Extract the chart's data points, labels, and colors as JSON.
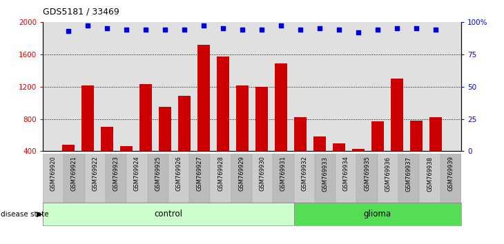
{
  "title": "GDS5181 / 33469",
  "samples": [
    "GSM769920",
    "GSM769921",
    "GSM769922",
    "GSM769923",
    "GSM769924",
    "GSM769925",
    "GSM769926",
    "GSM769927",
    "GSM769928",
    "GSM769929",
    "GSM769930",
    "GSM769931",
    "GSM769932",
    "GSM769933",
    "GSM769934",
    "GSM769935",
    "GSM769936",
    "GSM769937",
    "GSM769938",
    "GSM769939"
  ],
  "counts": [
    480,
    1210,
    700,
    460,
    1230,
    950,
    1090,
    1720,
    1570,
    1210,
    1200,
    1490,
    820,
    580,
    500,
    430,
    770,
    1300,
    780,
    820
  ],
  "percentile_ranks": [
    93,
    97,
    95,
    94,
    94,
    94,
    94,
    97,
    95,
    94,
    94,
    97,
    94,
    95,
    94,
    92,
    94,
    95,
    95,
    94
  ],
  "control_count": 12,
  "glioma_count": 8,
  "bar_color": "#cc0000",
  "dot_color": "#0000cc",
  "control_bg": "#ccffcc",
  "glioma_bg": "#55dd55",
  "tick_bg_even": "#cccccc",
  "tick_bg_odd": "#bbbbbb",
  "plot_bg": "#e0e0e0",
  "ylim_left": [
    400,
    2000
  ],
  "ylim_right": [
    0,
    100
  ],
  "yticks_left": [
    400,
    800,
    1200,
    1600,
    2000
  ],
  "yticks_right": [
    0,
    25,
    50,
    75,
    100
  ],
  "ytick_right_labels": [
    "0",
    "25",
    "50",
    "75",
    "100%"
  ],
  "grid_values": [
    800,
    1200,
    1600
  ]
}
